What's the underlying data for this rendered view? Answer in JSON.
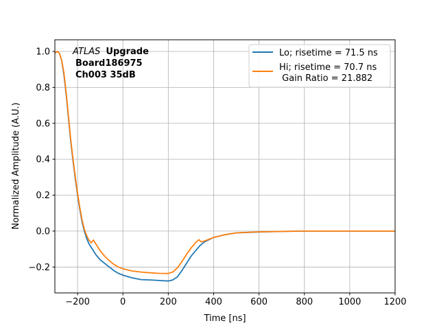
{
  "chart_data": {
    "type": "line",
    "title": "",
    "xlabel": "Time [ns]",
    "ylabel": "Normalized Amplitude (A.U.)",
    "xlim": [
      -300,
      1200
    ],
    "ylim": [
      -0.344,
      1.065
    ],
    "xticks": [
      -200,
      0,
      200,
      400,
      600,
      800,
      1000,
      1200
    ],
    "xtick_labels": [
      "−200",
      "0",
      "200",
      "400",
      "600",
      "800",
      "1000",
      "1200"
    ],
    "yticks": [
      -0.2,
      0.0,
      0.2,
      0.4,
      0.6,
      0.8,
      1.0
    ],
    "ytick_labels": [
      "−0.2",
      "0.0",
      "0.2",
      "0.4",
      "0.6",
      "0.8",
      "1.0"
    ],
    "grid": true,
    "legend_placement": "top-right",
    "annotation": {
      "italic": "ATLAS",
      "bold": "Upgrade",
      "line2": "Board186975",
      "line3": "Ch003 35dB"
    },
    "series": [
      {
        "name": "Lo; risetime = 71.5 ns",
        "color": "#1f77b4",
        "x": [
          -300,
          -290,
          -280,
          -270,
          -260,
          -250,
          -240,
          -230,
          -220,
          -210,
          -200,
          -190,
          -180,
          -170,
          -160,
          -150,
          -140,
          -130,
          -120,
          -100,
          -80,
          -60,
          -40,
          -20,
          0,
          40,
          80,
          120,
          160,
          200,
          220,
          240,
          260,
          280,
          300,
          320,
          340,
          360,
          400,
          450,
          500,
          600,
          700,
          800,
          1000,
          1200
        ],
        "y": [
          0.99,
          1.0,
          0.99,
          0.95,
          0.87,
          0.76,
          0.63,
          0.5,
          0.39,
          0.29,
          0.2,
          0.12,
          0.05,
          0.0,
          -0.04,
          -0.07,
          -0.09,
          -0.11,
          -0.13,
          -0.16,
          -0.18,
          -0.2,
          -0.22,
          -0.235,
          -0.245,
          -0.26,
          -0.27,
          -0.272,
          -0.275,
          -0.278,
          -0.272,
          -0.255,
          -0.22,
          -0.18,
          -0.14,
          -0.11,
          -0.08,
          -0.06,
          -0.035,
          -0.02,
          -0.01,
          -0.005,
          -0.002,
          0.0,
          0.0,
          0.0
        ]
      },
      {
        "name": "Hi; risetime = 70.7 ns\n Gain Ratio = 21.882",
        "color": "#ff7f0e",
        "x": [
          -300,
          -290,
          -280,
          -270,
          -260,
          -250,
          -240,
          -230,
          -220,
          -210,
          -200,
          -190,
          -180,
          -170,
          -160,
          -150,
          -140,
          -130,
          -120,
          -100,
          -80,
          -60,
          -40,
          -20,
          0,
          40,
          80,
          120,
          160,
          200,
          220,
          240,
          260,
          280,
          300,
          320,
          335,
          345,
          360,
          400,
          450,
          500,
          600,
          800,
          1200
        ],
        "y": [
          0.99,
          1.0,
          0.99,
          0.95,
          0.88,
          0.77,
          0.64,
          0.51,
          0.4,
          0.3,
          0.21,
          0.13,
          0.06,
          0.01,
          -0.025,
          -0.05,
          -0.065,
          -0.05,
          -0.07,
          -0.11,
          -0.14,
          -0.165,
          -0.185,
          -0.2,
          -0.21,
          -0.222,
          -0.228,
          -0.232,
          -0.235,
          -0.236,
          -0.228,
          -0.205,
          -0.17,
          -0.13,
          -0.095,
          -0.065,
          -0.048,
          -0.06,
          -0.055,
          -0.035,
          -0.02,
          -0.01,
          -0.004,
          0.0,
          0.0
        ]
      }
    ]
  }
}
